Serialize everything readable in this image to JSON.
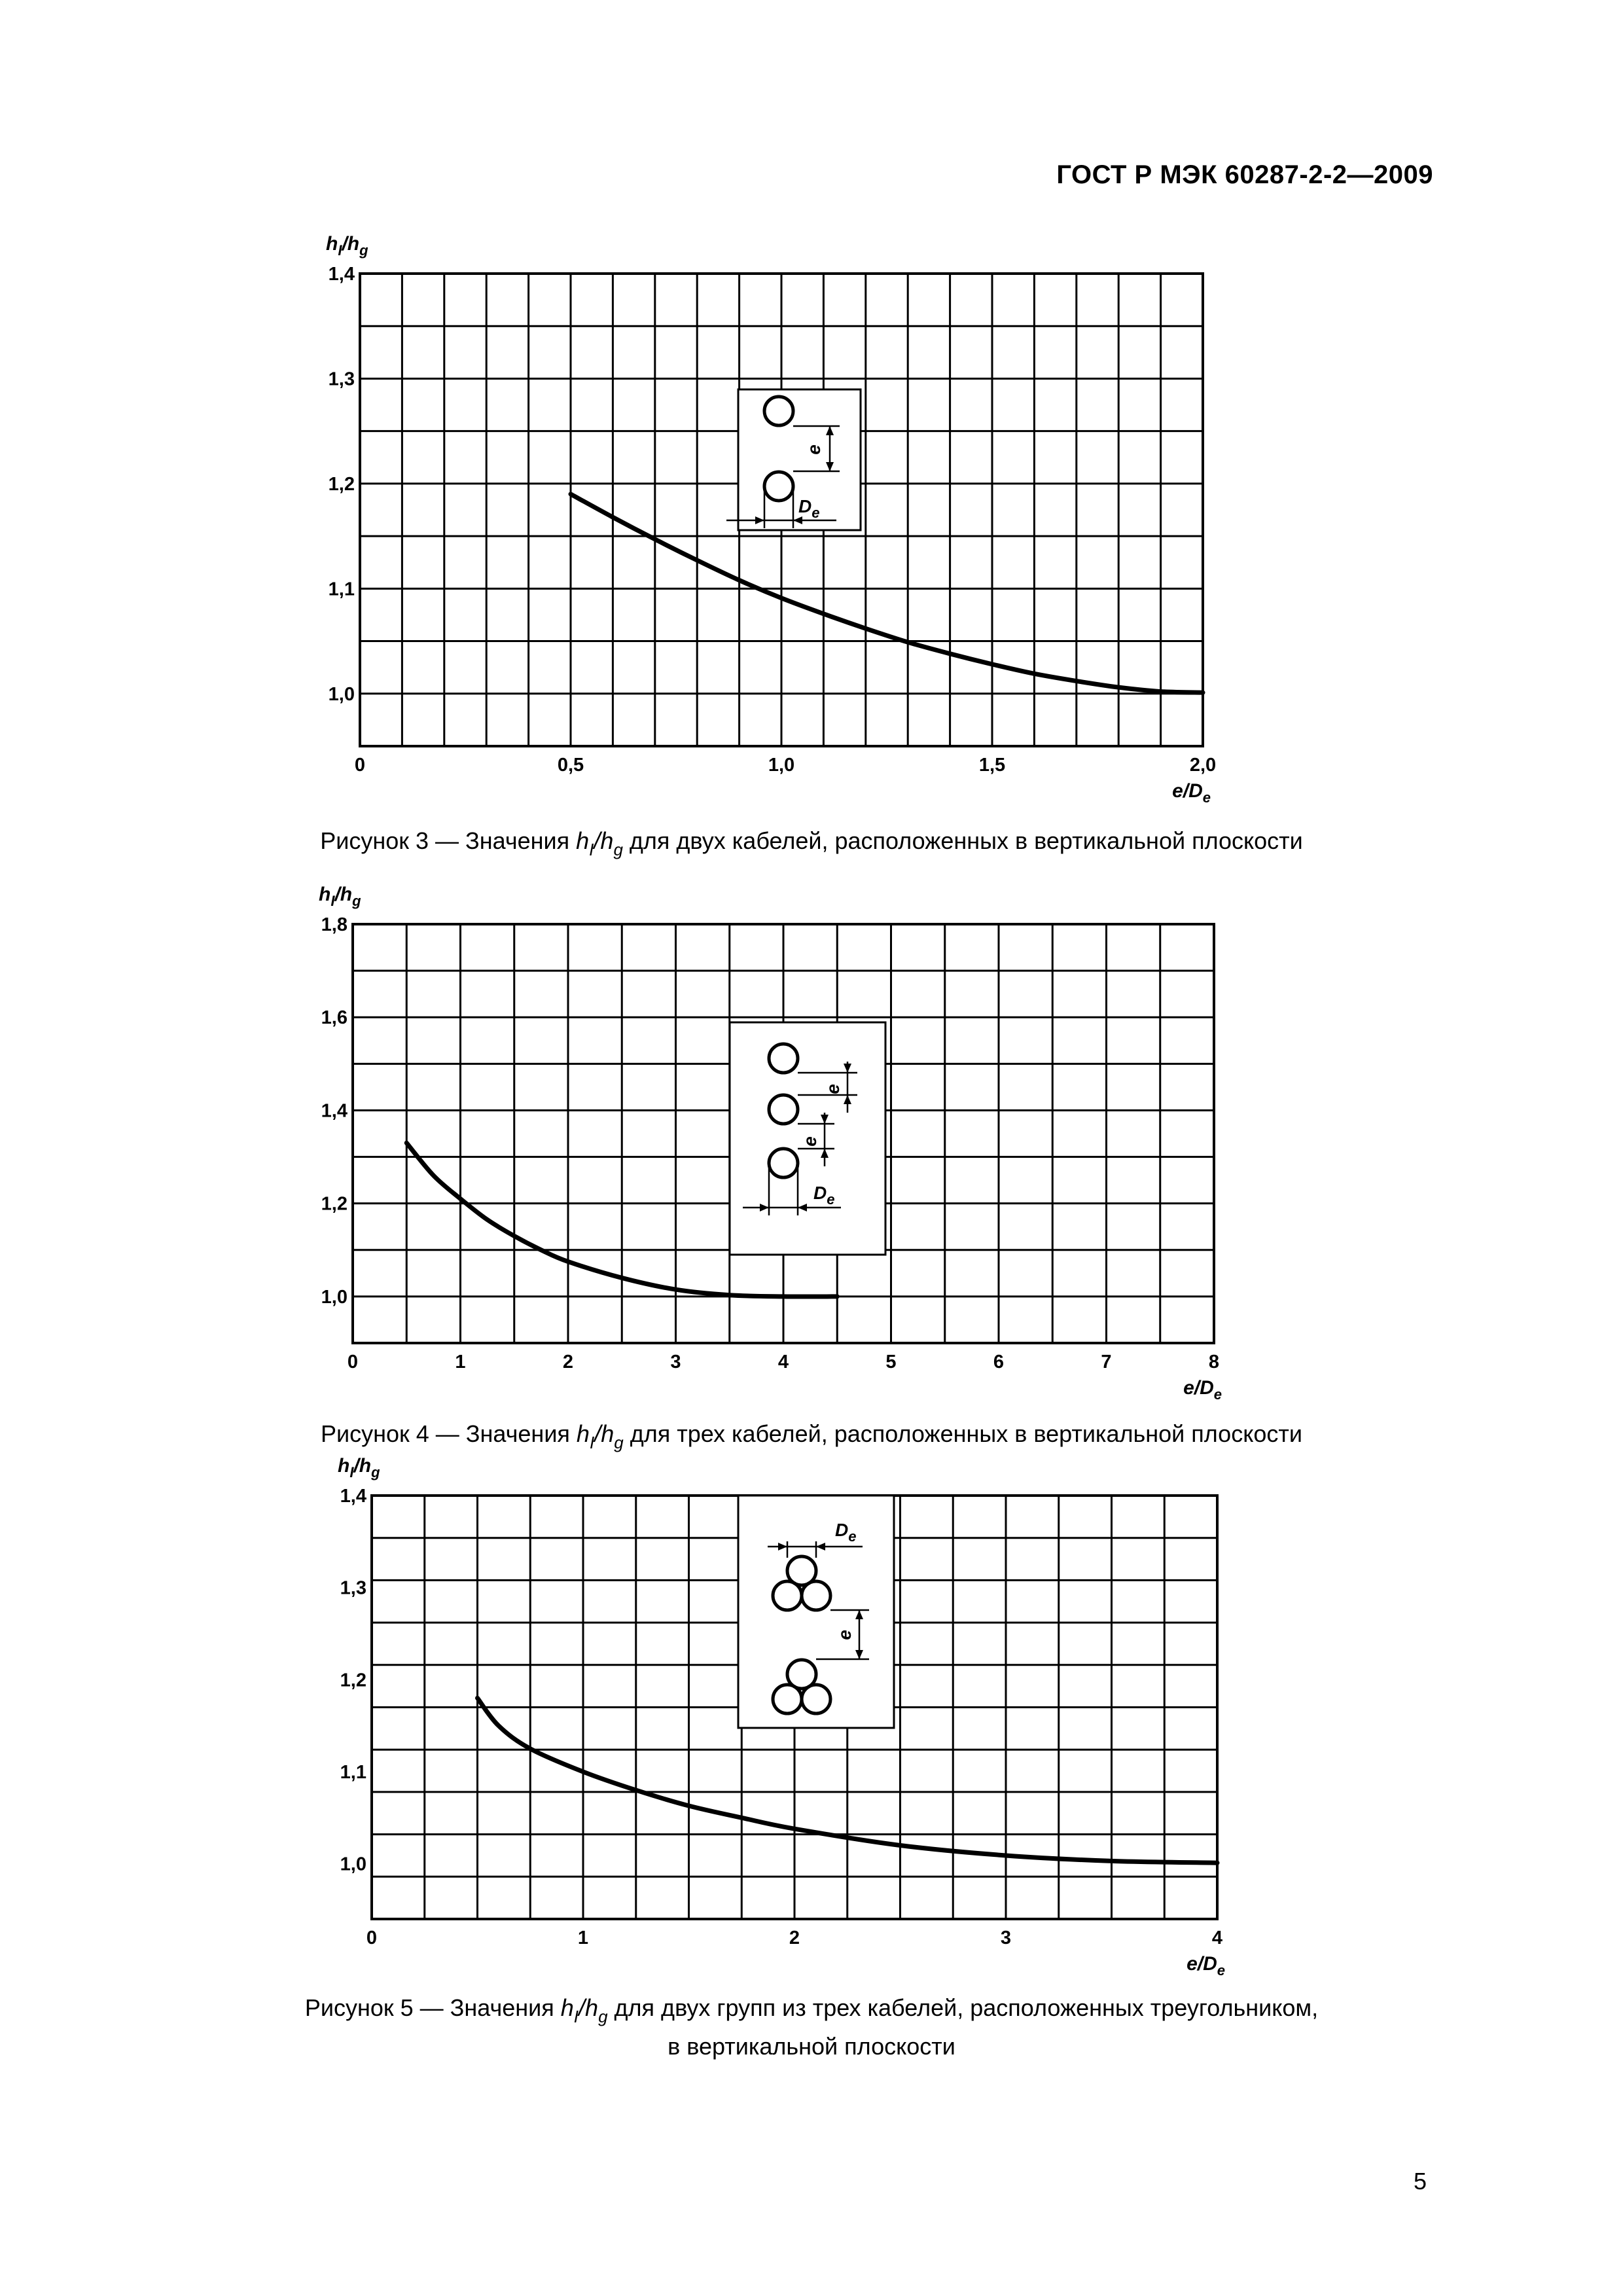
{
  "header": {
    "doc_code": "ГОСТ Р МЭК 60287-2-2—2009"
  },
  "footer": {
    "page_number": "5"
  },
  "figures": [
    {
      "caption": {
        "before": "Рисунок 3 — Значения ",
        "h1": "h",
        "s1": "I",
        "slash": "/",
        "h2": "h",
        "s2": "g",
        "after": " для двух кабелей, расположенных в вертикальной плоскости",
        "line2": ""
      },
      "inset": {
        "e_label": "e",
        "de_main": "D",
        "de_sub": "e"
      }
    },
    {
      "caption": {
        "before": "Рисунок 4 — Значения ",
        "h1": "h",
        "s1": "I",
        "slash": "/",
        "h2": "h",
        "s2": "g",
        "after": " для трех кабелей, расположенных в вертикальной плоскости",
        "line2": ""
      },
      "inset": {
        "e_label": "e",
        "de_main": "D",
        "de_sub": "e"
      }
    },
    {
      "caption": {
        "before": "Рисунок 5 — Значения ",
        "h1": "h",
        "s1": "I",
        "slash": "/",
        "h2": "h",
        "s2": "g",
        "after": " для двух групп из трех кабелей, расположенных треугольником,",
        "line2": "в вертикальной плоскости"
      },
      "inset": {
        "e_label": "e",
        "de_main": "D",
        "de_sub": "e"
      }
    }
  ],
  "chart_data": [
    {
      "type": "line",
      "ylabel": {
        "main": "h",
        "sub1": "I",
        "sep": "/",
        "main2": "h",
        "sub2": "g"
      },
      "xlabel": {
        "main": "e/D",
        "sub": "e"
      },
      "xlim": [
        0,
        2.0
      ],
      "ylim": [
        0.95,
        1.4
      ],
      "x_ticks": [
        "0",
        "0,5",
        "1,0",
        "1,5",
        "2,0"
      ],
      "x_tick_values": [
        0,
        0.5,
        1.0,
        1.5,
        2.0
      ],
      "y_ticks": [
        "1,0",
        "1,1",
        "1,2",
        "1,3",
        "1,4"
      ],
      "y_tick_values": [
        1.0,
        1.1,
        1.2,
        1.3,
        1.4
      ],
      "grid": true,
      "series": [
        {
          "x": [
            0.5,
            0.6,
            0.7,
            0.8,
            0.9,
            1.0,
            1.1,
            1.2,
            1.3,
            1.4,
            1.5,
            1.6,
            1.7,
            1.8,
            1.9,
            2.0
          ],
          "y": [
            1.19,
            1.168,
            1.147,
            1.127,
            1.108,
            1.091,
            1.076,
            1.062,
            1.049,
            1.038,
            1.028,
            1.019,
            1.012,
            1.006,
            1.002,
            1.001
          ]
        }
      ]
    },
    {
      "type": "line",
      "ylabel": {
        "main": "h",
        "sub1": "I",
        "sep": "/",
        "main2": "h",
        "sub2": "g"
      },
      "xlabel": {
        "main": "e/D",
        "sub": "e"
      },
      "xlim": [
        0,
        8
      ],
      "ylim": [
        0.9,
        1.8
      ],
      "x_ticks": [
        "0",
        "1",
        "2",
        "3",
        "4",
        "5",
        "6",
        "7",
        "8"
      ],
      "x_tick_values": [
        0,
        1,
        2,
        3,
        4,
        5,
        6,
        7,
        8
      ],
      "y_ticks": [
        "1,0",
        "1,2",
        "1,4",
        "1,6",
        "1,8"
      ],
      "y_tick_values": [
        1.0,
        1.2,
        1.4,
        1.6,
        1.8
      ],
      "grid": true,
      "series": [
        {
          "x": [
            0.5,
            0.75,
            1.0,
            1.25,
            1.5,
            1.75,
            2.0,
            2.5,
            3.0,
            3.5,
            4.0,
            4.5
          ],
          "y": [
            1.33,
            1.26,
            1.21,
            1.165,
            1.13,
            1.1,
            1.075,
            1.04,
            1.015,
            1.003,
            1.0,
            1.0
          ]
        }
      ]
    },
    {
      "type": "line",
      "ylabel": {
        "main": "h",
        "sub1": "I",
        "sep": "/",
        "main2": "h",
        "sub2": "g"
      },
      "xlabel": {
        "main": "e/D",
        "sub": "e"
      },
      "xlim": [
        0,
        4
      ],
      "ylim": [
        0.94,
        1.4
      ],
      "x_ticks": [
        "0",
        "1",
        "2",
        "3",
        "4"
      ],
      "x_tick_values": [
        0,
        1,
        2,
        3,
        4
      ],
      "y_ticks": [
        "1,0",
        "1,1",
        "1,2",
        "1,3",
        "1,4"
      ],
      "y_tick_values": [
        1.0,
        1.1,
        1.2,
        1.3,
        1.4
      ],
      "grid": true,
      "series": [
        {
          "x": [
            0.5,
            0.6,
            0.75,
            1.0,
            1.25,
            1.5,
            1.75,
            2.0,
            2.5,
            3.0,
            3.5,
            4.0
          ],
          "y": [
            1.18,
            1.15,
            1.125,
            1.1,
            1.08,
            1.063,
            1.05,
            1.038,
            1.02,
            1.009,
            1.003,
            1.001
          ]
        }
      ]
    }
  ]
}
